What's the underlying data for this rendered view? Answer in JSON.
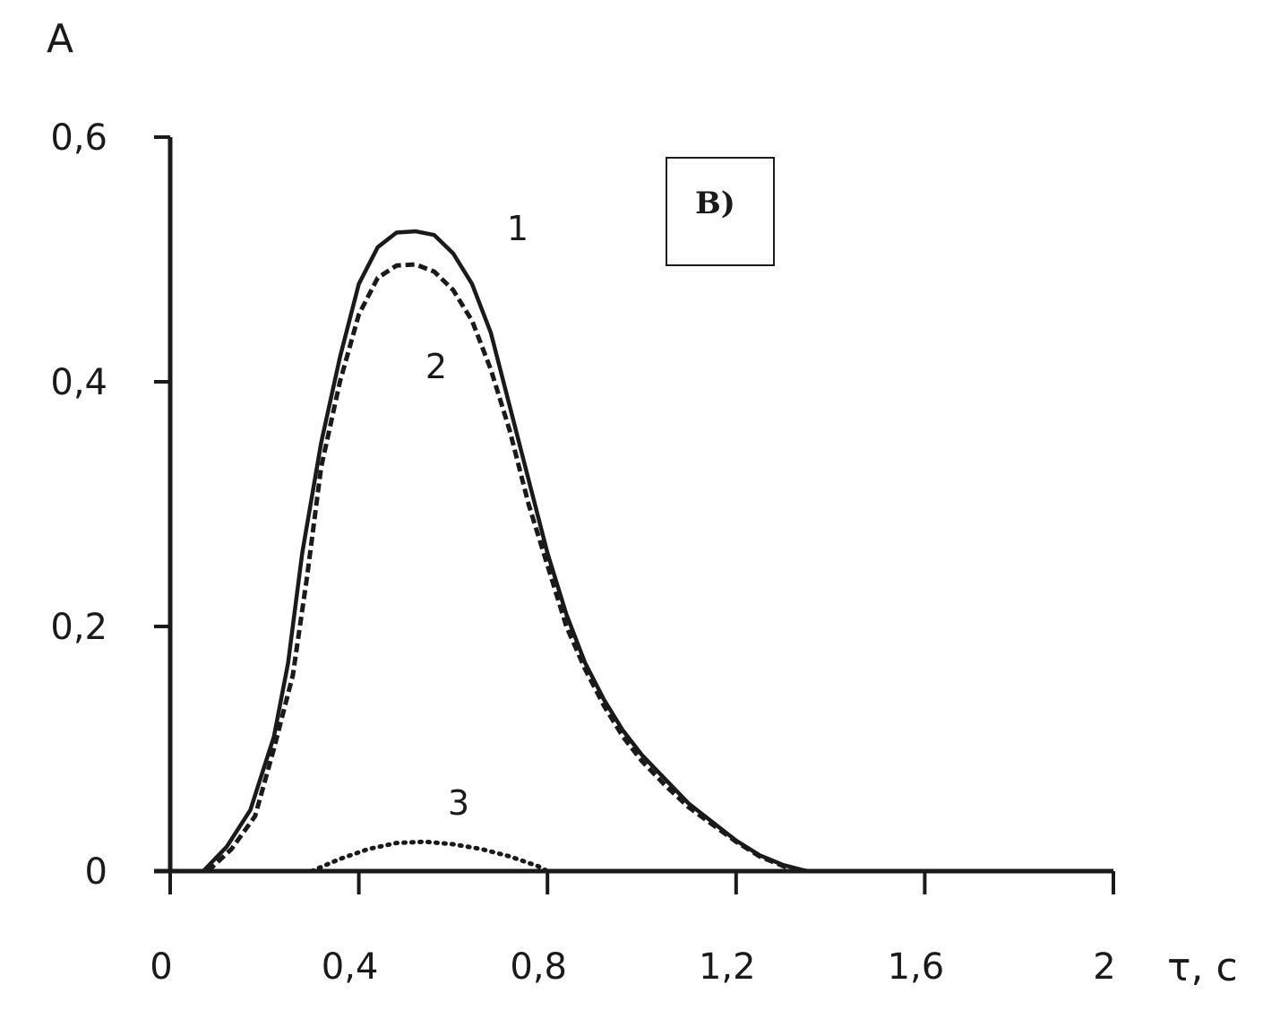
{
  "chart_data": {
    "type": "line",
    "ylabel": "A",
    "xlabel": "τ, с",
    "xlim": [
      0,
      2
    ],
    "ylim": [
      0,
      0.6
    ],
    "x_ticks": [
      0,
      0.4,
      0.8,
      1.2,
      1.6,
      2
    ],
    "x_tick_labels": [
      "0",
      "0,4",
      "0,8",
      "1,2",
      "1,6",
      "2"
    ],
    "y_ticks": [
      0,
      0.2,
      0.4,
      0.6
    ],
    "y_tick_labels": [
      "0",
      "0,2",
      "0,4",
      "0,6"
    ],
    "panel_label": "В)",
    "grid": false,
    "series": [
      {
        "label": "1",
        "style": "solid",
        "x": [
          0.07,
          0.12,
          0.17,
          0.22,
          0.25,
          0.28,
          0.32,
          0.36,
          0.4,
          0.44,
          0.48,
          0.52,
          0.56,
          0.6,
          0.64,
          0.68,
          0.72,
          0.76,
          0.8,
          0.84,
          0.88,
          0.92,
          0.96,
          1.0,
          1.05,
          1.1,
          1.15,
          1.2,
          1.25,
          1.3,
          1.35
        ],
        "y": [
          0,
          0.02,
          0.05,
          0.11,
          0.17,
          0.26,
          0.35,
          0.42,
          0.48,
          0.51,
          0.522,
          0.523,
          0.52,
          0.505,
          0.48,
          0.44,
          0.38,
          0.32,
          0.26,
          0.21,
          0.17,
          0.14,
          0.115,
          0.095,
          0.075,
          0.055,
          0.04,
          0.025,
          0.013,
          0.005,
          0
        ]
      },
      {
        "label": "2",
        "style": "dashed",
        "x": [
          0.08,
          0.13,
          0.18,
          0.22,
          0.26,
          0.29,
          0.32,
          0.36,
          0.4,
          0.44,
          0.48,
          0.52,
          0.56,
          0.6,
          0.64,
          0.68,
          0.72,
          0.76,
          0.8,
          0.84,
          0.88,
          0.92,
          0.96,
          1.0,
          1.05,
          1.1,
          1.15,
          1.2,
          1.25,
          1.3,
          1.35
        ],
        "y": [
          0,
          0.018,
          0.045,
          0.1,
          0.16,
          0.24,
          0.33,
          0.4,
          0.455,
          0.485,
          0.495,
          0.496,
          0.49,
          0.475,
          0.45,
          0.41,
          0.36,
          0.3,
          0.25,
          0.2,
          0.165,
          0.135,
          0.11,
          0.09,
          0.07,
          0.052,
          0.038,
          0.024,
          0.012,
          0.004,
          0
        ]
      },
      {
        "label": "3",
        "style": "dotted",
        "x": [
          0.3,
          0.36,
          0.42,
          0.48,
          0.54,
          0.6,
          0.66,
          0.72,
          0.78,
          0.8
        ],
        "y": [
          0,
          0.01,
          0.018,
          0.023,
          0.024,
          0.022,
          0.018,
          0.012,
          0.004,
          0
        ]
      }
    ]
  }
}
